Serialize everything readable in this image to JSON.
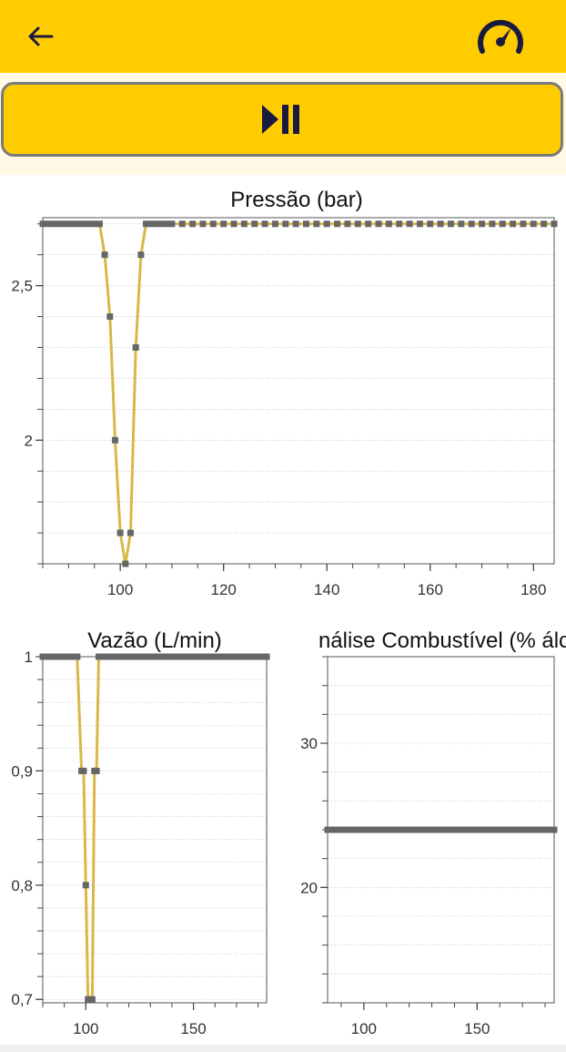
{
  "header": {
    "back_icon": "arrow-left-icon",
    "speed_icon": "speedometer-icon"
  },
  "controls": {
    "play_pause_icon": "play-pause-icon"
  },
  "colors": {
    "topbar": "#FFCC00",
    "line": "#D9B847",
    "marker": "#666666",
    "grid": "#bbbbbb"
  },
  "chart_data": [
    {
      "type": "line",
      "title": "Pressão (bar)",
      "xlim": [
        85,
        184
      ],
      "ylim": [
        1.6,
        2.72
      ],
      "x_ticks": [
        100,
        120,
        140,
        160,
        180
      ],
      "x_tick_labels": [
        "100",
        "120",
        "140",
        "160",
        "180"
      ],
      "y_ticks": [
        2,
        2.5
      ],
      "y_tick_labels": [
        "2",
        "2,5"
      ],
      "grid": true,
      "x": [
        85,
        86,
        87,
        88,
        89,
        90,
        91,
        92,
        93,
        94,
        95,
        96,
        97,
        98,
        99,
        100,
        101,
        102,
        103,
        104,
        105,
        106,
        107,
        108,
        109,
        110,
        112,
        114,
        116,
        118,
        120,
        122,
        124,
        126,
        128,
        130,
        132,
        134,
        136,
        138,
        140,
        142,
        144,
        146,
        148,
        150,
        152,
        154,
        156,
        158,
        160,
        162,
        164,
        166,
        168,
        170,
        172,
        174,
        176,
        178,
        180,
        182,
        184
      ],
      "y": [
        2.7,
        2.7,
        2.7,
        2.7,
        2.7,
        2.7,
        2.7,
        2.7,
        2.7,
        2.7,
        2.7,
        2.7,
        2.6,
        2.4,
        2.0,
        1.7,
        1.6,
        1.7,
        2.3,
        2.6,
        2.7,
        2.7,
        2.7,
        2.7,
        2.7,
        2.7,
        2.7,
        2.7,
        2.7,
        2.7,
        2.7,
        2.7,
        2.7,
        2.7,
        2.7,
        2.7,
        2.7,
        2.7,
        2.7,
        2.7,
        2.7,
        2.7,
        2.7,
        2.7,
        2.7,
        2.7,
        2.7,
        2.7,
        2.7,
        2.7,
        2.7,
        2.7,
        2.7,
        2.7,
        2.7,
        2.7,
        2.7,
        2.7,
        2.7,
        2.7,
        2.7,
        2.7,
        2.7
      ]
    },
    {
      "type": "line",
      "title": "Vazão (L/min)",
      "xlim": [
        80,
        184
      ],
      "ylim": [
        0.697,
        1.0
      ],
      "x_ticks": [
        100,
        150
      ],
      "x_tick_labels": [
        "100",
        "150"
      ],
      "y_ticks": [
        0.7,
        0.8,
        0.9,
        1.0
      ],
      "y_tick_labels": [
        "0,7",
        "0,8",
        "0,9",
        "1"
      ],
      "grid": true,
      "x": [
        80,
        82,
        84,
        86,
        88,
        90,
        92,
        94,
        96,
        98,
        99,
        100,
        101,
        102,
        103,
        104,
        105,
        106,
        108,
        110,
        112,
        114,
        116,
        118,
        120,
        122,
        124,
        126,
        128,
        130,
        132,
        134,
        136,
        138,
        140,
        142,
        144,
        146,
        148,
        150,
        152,
        154,
        156,
        158,
        160,
        162,
        164,
        166,
        168,
        170,
        172,
        174,
        176,
        178,
        180,
        182,
        184
      ],
      "y": [
        1.0,
        1.0,
        1.0,
        1.0,
        1.0,
        1.0,
        1.0,
        1.0,
        1.0,
        0.9,
        0.9,
        0.8,
        0.7,
        0.7,
        0.7,
        0.9,
        0.9,
        1.0,
        1.0,
        1.0,
        1.0,
        1.0,
        1.0,
        1.0,
        1.0,
        1.0,
        1.0,
        1.0,
        1.0,
        1.0,
        1.0,
        1.0,
        1.0,
        1.0,
        1.0,
        1.0,
        1.0,
        1.0,
        1.0,
        1.0,
        1.0,
        1.0,
        1.0,
        1.0,
        1.0,
        1.0,
        1.0,
        1.0,
        1.0,
        1.0,
        1.0,
        1.0,
        1.0,
        1.0,
        1.0,
        1.0,
        1.0
      ]
    },
    {
      "type": "line",
      "title": "nálise Combustível (% álc",
      "xlim": [
        84,
        184
      ],
      "ylim": [
        12,
        36
      ],
      "x_ticks": [
        100,
        150
      ],
      "x_tick_labels": [
        "100",
        "150"
      ],
      "y_ticks": [
        20,
        30
      ],
      "y_tick_labels": [
        "20",
        "30"
      ],
      "grid": true,
      "x": [
        84,
        86,
        88,
        90,
        92,
        94,
        96,
        98,
        100,
        102,
        104,
        106,
        108,
        110,
        112,
        114,
        116,
        118,
        120,
        122,
        124,
        126,
        128,
        130,
        132,
        134,
        136,
        138,
        140,
        142,
        144,
        146,
        148,
        150,
        152,
        154,
        156,
        158,
        160,
        162,
        164,
        166,
        168,
        170,
        172,
        174,
        176,
        178,
        180,
        182,
        184
      ],
      "y": [
        24,
        24,
        24,
        24,
        24,
        24,
        24,
        24,
        24,
        24,
        24,
        24,
        24,
        24,
        24,
        24,
        24,
        24,
        24,
        24,
        24,
        24,
        24,
        24,
        24,
        24,
        24,
        24,
        24,
        24,
        24,
        24,
        24,
        24,
        24,
        24,
        24,
        24,
        24,
        24,
        24,
        24,
        24,
        24,
        24,
        24,
        24,
        24,
        24,
        24,
        24
      ]
    }
  ]
}
